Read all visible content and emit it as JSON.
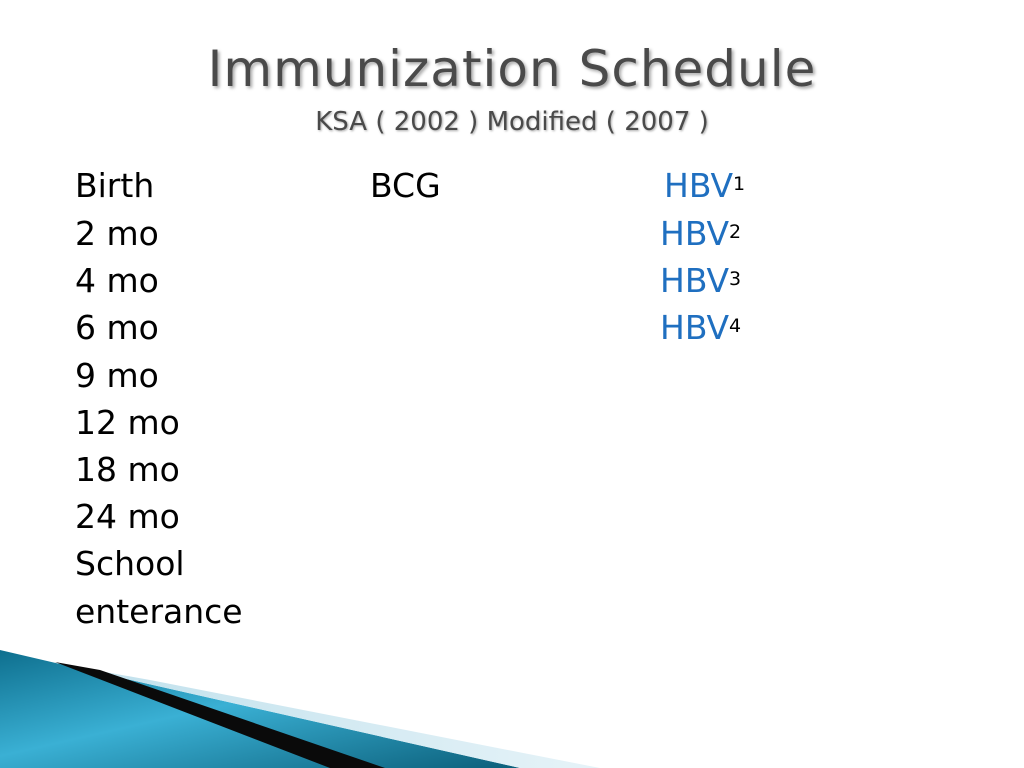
{
  "slide": {
    "title": "Immunization Schedule",
    "subtitle": "KSA ( 2002 ) Modified ( 2007 )"
  },
  "schedule": [
    {
      "age": "Birth",
      "bcg": "BCG",
      "hbv": "HBV",
      "hbv_dose": "1"
    },
    {
      "age": "2 mo",
      "hbv": "HBV",
      "hbv_dose": "2"
    },
    {
      "age": "4 mo",
      "hbv": "HBV",
      "hbv_dose": "3"
    },
    {
      "age": "6 mo",
      "hbv": "HBV",
      "hbv_dose": "4"
    },
    {
      "age": "9 mo"
    },
    {
      "age": "12 mo"
    },
    {
      "age": "18 mo"
    },
    {
      "age": "24 mo"
    },
    {
      "age": "School"
    },
    {
      "age": "enterance"
    }
  ],
  "colors": {
    "hbv_text": "#1f6fc0",
    "title_text": "#4a4a4a"
  }
}
